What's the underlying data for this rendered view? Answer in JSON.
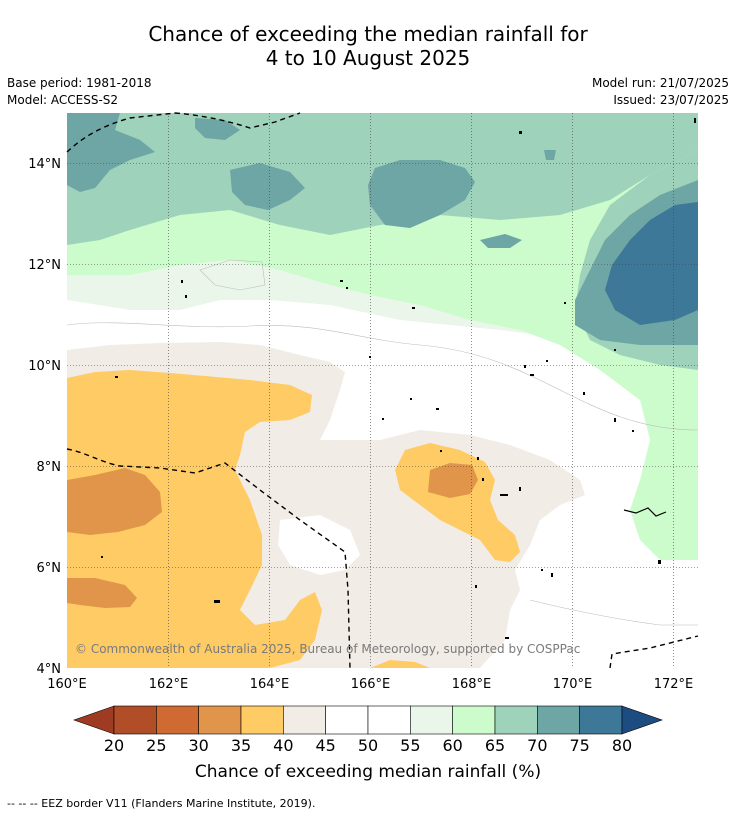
{
  "title": {
    "line1": "Chance of exceeding the median rainfall for",
    "line2": "4 to 10 August 2025"
  },
  "meta": {
    "base_period": "Base period: 1981-2018",
    "model": "Model: ACCESS-S2",
    "model_run": "Model run: 21/07/2025",
    "issued": "Issued: 23/07/2025"
  },
  "map": {
    "lon_ticks": [
      "160°E",
      "162°E",
      "164°E",
      "166°E",
      "168°E",
      "170°E",
      "172°E"
    ],
    "lat_ticks": [
      "14°N",
      "12°N",
      "10°N",
      "8°N",
      "6°N",
      "4°N"
    ],
    "copyright": "© Commonwealth of Australia 2025, Bureau of Meteorology, supported by COSPPac",
    "extent": {
      "lon": [
        160,
        172.5
      ],
      "lat": [
        4,
        15
      ]
    }
  },
  "colorbar": {
    "labels": [
      "20",
      "25",
      "30",
      "35",
      "40",
      "45",
      "50",
      "55",
      "60",
      "65",
      "70",
      "75",
      "80"
    ],
    "colors": [
      "#9e3b22",
      "#b24e27",
      "#cf6a33",
      "#e1954a",
      "#fecb65",
      "#f2ece6",
      "#ffffff",
      "#ffffff",
      "#eaf6ea",
      "#ccfccc",
      "#9ed2bb",
      "#6ea5a5",
      "#3e7898",
      "#1c4c80"
    ],
    "title": "Chance of exceeding median rainfall (%)"
  },
  "footnote": "-- -- -- EEZ border V11 (Flanders Marine Institute, 2019)."
}
